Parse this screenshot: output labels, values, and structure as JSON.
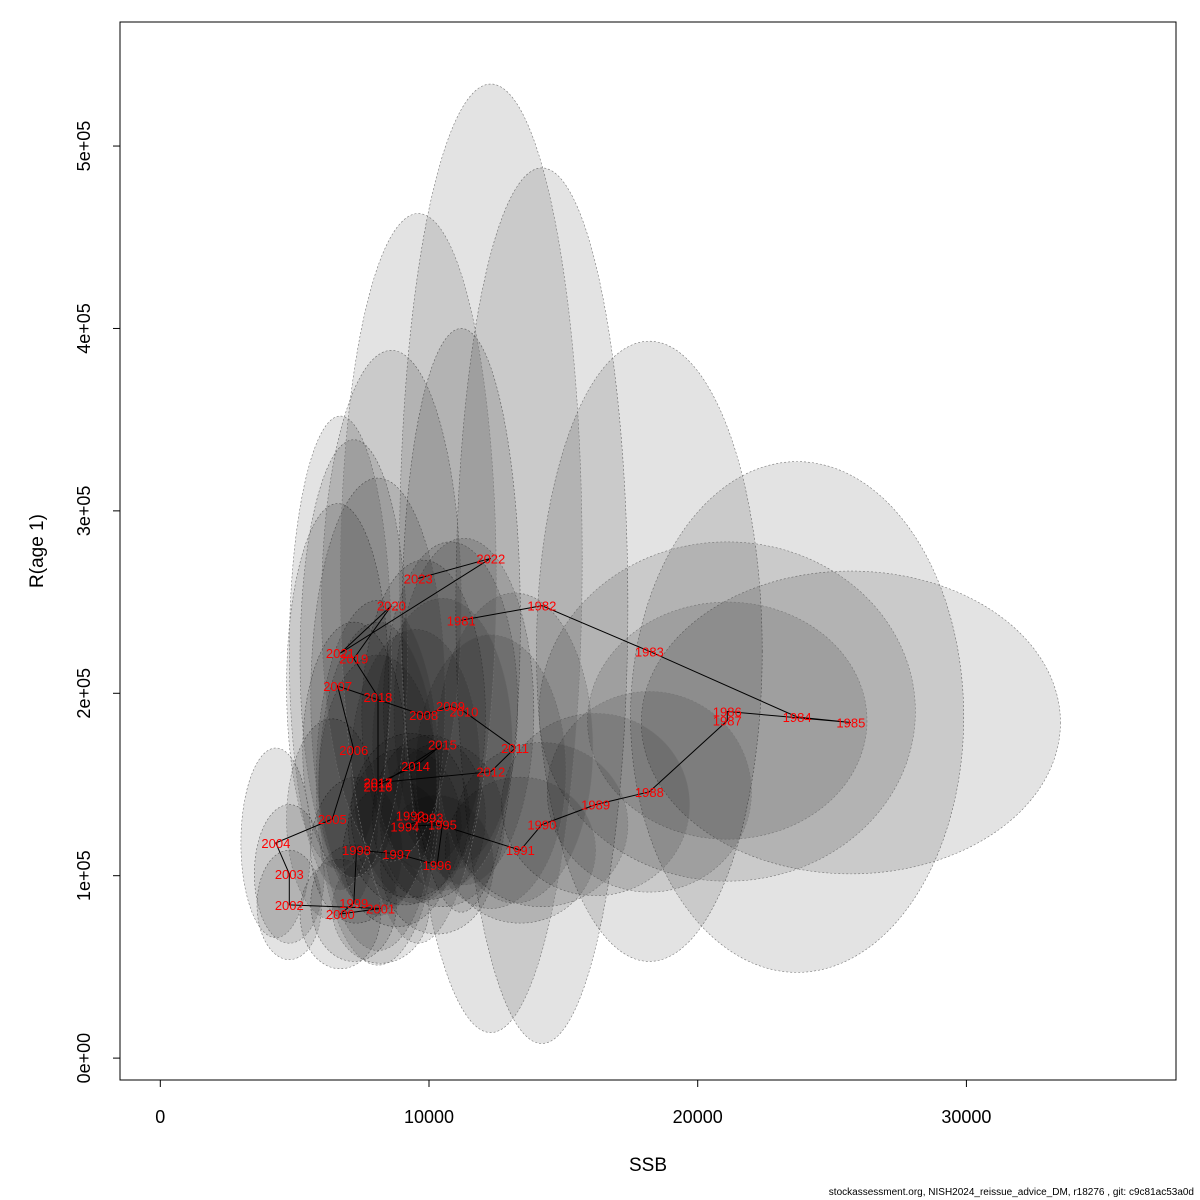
{
  "chart_data": {
    "type": "scatter",
    "title": "",
    "xlabel": "SSB",
    "ylabel": "R(age 1)",
    "xlim": [
      -1500,
      37800
    ],
    "ylim": [
      -12000,
      568000
    ],
    "xticks": [
      0,
      10000,
      20000,
      30000
    ],
    "xtick_labels": [
      "0",
      "10000",
      "20000",
      "30000"
    ],
    "yticks": [
      0,
      100000,
      200000,
      300000,
      400000,
      500000
    ],
    "ytick_labels": [
      "0e+00",
      "1e+05",
      "2e+05",
      "3e+05",
      "4e+05",
      "5e+05"
    ],
    "label_color": "#ff0000",
    "line_color": "#000000",
    "ellipse_fill": "rgba(0,0,0,0.11)",
    "ellipse_stroke": "#777777",
    "grid": false,
    "points": [
      {
        "year": "1981",
        "x": 11200,
        "y": 240000,
        "sx": 2200,
        "sy": 160000
      },
      {
        "year": "1982",
        "x": 14200,
        "y": 248000,
        "sx": 3200,
        "sy": 240000
      },
      {
        "year": "1983",
        "x": 18200,
        "y": 223000,
        "sx": 4200,
        "sy": 170000
      },
      {
        "year": "1984",
        "x": 23700,
        "y": 187000,
        "sx": 6200,
        "sy": 140000
      },
      {
        "year": "1985",
        "x": 25700,
        "y": 184000,
        "sx": 7800,
        "sy": 83000
      },
      {
        "year": "1986",
        "x": 21100,
        "y": 190000,
        "sx": 7000,
        "sy": 93000
      },
      {
        "year": "1987",
        "x": 21100,
        "y": 185000,
        "sx": 5200,
        "sy": 65000
      },
      {
        "year": "1988",
        "x": 18200,
        "y": 146000,
        "sx": 3800,
        "sy": 55000
      },
      {
        "year": "1989",
        "x": 16200,
        "y": 139000,
        "sx": 3500,
        "sy": 50000
      },
      {
        "year": "1990",
        "x": 14200,
        "y": 128000,
        "sx": 3200,
        "sy": 45000
      },
      {
        "year": "1991",
        "x": 13400,
        "y": 114000,
        "sx": 2800,
        "sy": 40000
      },
      {
        "year": "1992",
        "x": 9300,
        "y": 133000,
        "sx": 2200,
        "sy": 45000
      },
      {
        "year": "1993",
        "x": 10000,
        "y": 132000,
        "sx": 2100,
        "sy": 45000
      },
      {
        "year": "1994",
        "x": 9100,
        "y": 127000,
        "sx": 2100,
        "sy": 43000
      },
      {
        "year": "1995",
        "x": 10500,
        "y": 128000,
        "sx": 2300,
        "sy": 45000
      },
      {
        "year": "1996",
        "x": 10300,
        "y": 106000,
        "sx": 2100,
        "sy": 38000
      },
      {
        "year": "1997",
        "x": 8800,
        "y": 112000,
        "sx": 2000,
        "sy": 40000
      },
      {
        "year": "1998",
        "x": 7300,
        "y": 114000,
        "sx": 1700,
        "sy": 40000
      },
      {
        "year": "1999",
        "x": 7200,
        "y": 85000,
        "sx": 1600,
        "sy": 32000
      },
      {
        "year": "2000",
        "x": 6700,
        "y": 79000,
        "sx": 1500,
        "sy": 30000
      },
      {
        "year": "2001",
        "x": 8200,
        "y": 82000,
        "sx": 1800,
        "sy": 30000
      },
      {
        "year": "2002",
        "x": 4800,
        "y": 84000,
        "sx": 1200,
        "sy": 30000
      },
      {
        "year": "2003",
        "x": 4800,
        "y": 101000,
        "sx": 1300,
        "sy": 38000
      },
      {
        "year": "2004",
        "x": 4300,
        "y": 118000,
        "sx": 1300,
        "sy": 52000
      },
      {
        "year": "2005",
        "x": 6400,
        "y": 131000,
        "sx": 1700,
        "sy": 55000
      },
      {
        "year": "2006",
        "x": 7200,
        "y": 169000,
        "sx": 1900,
        "sy": 70000
      },
      {
        "year": "2007",
        "x": 6600,
        "y": 204000,
        "sx": 1900,
        "sy": 100000
      },
      {
        "year": "2008",
        "x": 9800,
        "y": 188000,
        "sx": 2300,
        "sy": 85000
      },
      {
        "year": "2009",
        "x": 10800,
        "y": 193000,
        "sx": 2500,
        "sy": 90000
      },
      {
        "year": "2010",
        "x": 11300,
        "y": 190000,
        "sx": 2600,
        "sy": 95000
      },
      {
        "year": "2011",
        "x": 13200,
        "y": 170000,
        "sx": 2900,
        "sy": 85000
      },
      {
        "year": "2012",
        "x": 12300,
        "y": 157000,
        "sx": 2800,
        "sy": 75000
      },
      {
        "year": "2013",
        "x": 8100,
        "y": 151000,
        "sx": 2200,
        "sy": 70000
      },
      {
        "year": "2014",
        "x": 9500,
        "y": 160000,
        "sx": 2400,
        "sy": 75000
      },
      {
        "year": "2015",
        "x": 10500,
        "y": 172000,
        "sx": 2600,
        "sy": 80000
      },
      {
        "year": "2016",
        "x": 8100,
        "y": 149000,
        "sx": 2200,
        "sy": 90000
      },
      {
        "year": "2017",
        "x": 8100,
        "y": 151000,
        "sx": 2300,
        "sy": 100000
      },
      {
        "year": "2018",
        "x": 8100,
        "y": 198000,
        "sx": 2500,
        "sy": 120000
      },
      {
        "year": "2019",
        "x": 7200,
        "y": 219000,
        "sx": 2000,
        "sy": 120000
      },
      {
        "year": "2020",
        "x": 8600,
        "y": 248000,
        "sx": 2600,
        "sy": 140000
      },
      {
        "year": "2021",
        "x": 6700,
        "y": 222000,
        "sx": 1900,
        "sy": 130000
      },
      {
        "year": "2022",
        "x": 12300,
        "y": 274000,
        "sx": 3400,
        "sy": 260000
      },
      {
        "year": "2023",
        "x": 9600,
        "y": 263000,
        "sx": 2900,
        "sy": 200000
      }
    ]
  },
  "footer": {
    "caption": "stockassessment.org, NISH2024_reissue_advice_DM, r18276 , git: c9c81ac53a0d"
  }
}
